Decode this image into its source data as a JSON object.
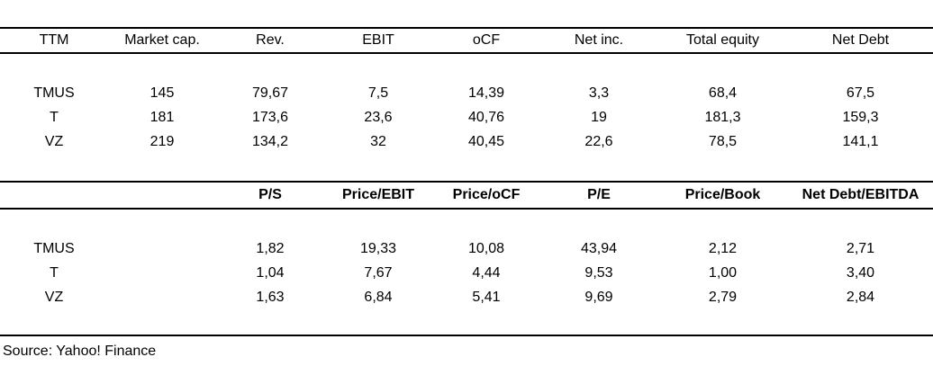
{
  "chart_data": [
    {
      "type": "table",
      "columns": [
        "TTM",
        "Market cap.",
        "Rev.",
        "EBIT",
        "oCF",
        "Net inc.",
        "Total equity",
        "Net Debt"
      ],
      "rows": [
        [
          "TMUS",
          "145",
          "79,67",
          "7,5",
          "14,39",
          "3,3",
          "68,4",
          "67,5"
        ],
        [
          "T",
          "181",
          "173,6",
          "23,6",
          "40,76",
          "19",
          "181,3",
          "159,3"
        ],
        [
          "VZ",
          "219",
          "134,2",
          "32",
          "40,45",
          "22,6",
          "78,5",
          "141,1"
        ]
      ]
    },
    {
      "type": "table",
      "columns": [
        "",
        "",
        "P/S",
        "Price/EBIT",
        "Price/oCF",
        "P/E",
        "Price/Book",
        "Net Debt/EBITDA"
      ],
      "rows": [
        [
          "TMUS",
          "",
          "1,82",
          "19,33",
          "10,08",
          "43,94",
          "2,12",
          "2,71"
        ],
        [
          "T",
          "",
          "1,04",
          "7,67",
          "4,44",
          "9,53",
          "1,00",
          "3,40"
        ],
        [
          "VZ",
          "",
          "1,63",
          "6,84",
          "5,41",
          "9,69",
          "2,79",
          "2,84"
        ]
      ]
    }
  ],
  "source": "Source: Yahoo! Finance",
  "colors": {
    "background": "#ffffff",
    "text": "#000000",
    "rule": "#000000"
  }
}
